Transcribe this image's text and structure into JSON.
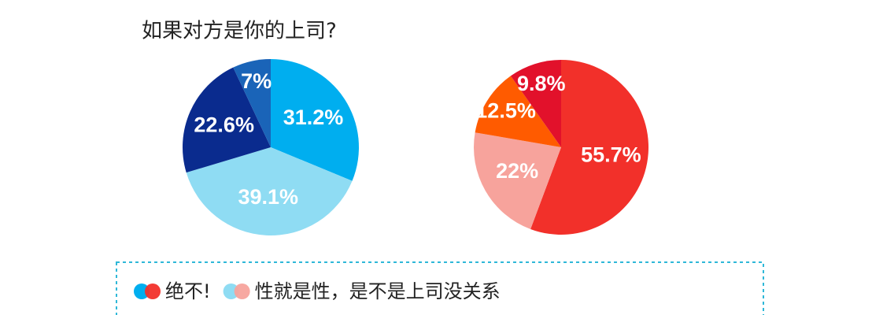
{
  "chart_data": [
    {
      "type": "pie",
      "title": "如果对方是你的上司?",
      "categories": [
        "绝不!",
        "性就是性，是不是上司没关系",
        null,
        null
      ],
      "values": [
        31.2,
        39.1,
        22.6,
        7
      ],
      "value_labels": [
        "31.2%",
        "39.1%",
        "22.6%",
        "7%"
      ],
      "colors": [
        "#00aeef",
        "#8fdcf3",
        "#0a2b8e",
        "#1a64b8"
      ]
    },
    {
      "type": "pie",
      "values": [
        55.7,
        22,
        12.5,
        9.8
      ],
      "value_labels": [
        "55.7%",
        "22%",
        "12.5%",
        "9.8%"
      ],
      "colors": [
        "#f2302a",
        "#f7a39c",
        "#ff5b00",
        "#e2112b"
      ]
    }
  ]
}
